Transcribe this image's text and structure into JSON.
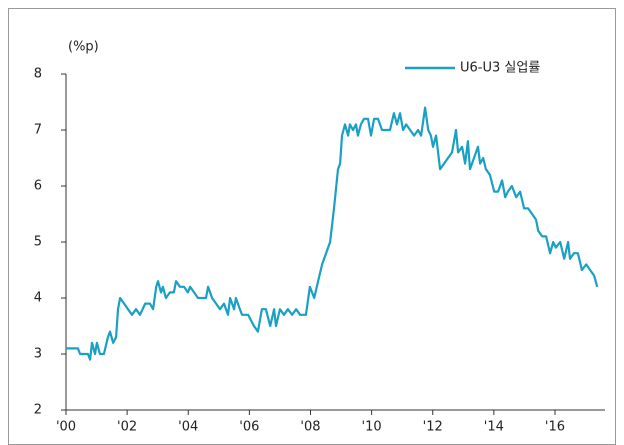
{
  "chart_data": {
    "type": "line",
    "y_label": "(%p)",
    "legend": "top-right",
    "xlim": [
      2000,
      2017.8
    ],
    "ylim": [
      2,
      8
    ],
    "yticks": [
      2,
      3,
      4,
      5,
      6,
      7,
      8
    ],
    "xticks": [
      {
        "value": 2000,
        "label": "'00"
      },
      {
        "value": 2002,
        "label": "'02"
      },
      {
        "value": 2004,
        "label": "'04"
      },
      {
        "value": 2006,
        "label": "'06"
      },
      {
        "value": 2008,
        "label": "'08"
      },
      {
        "value": 2010,
        "label": "'10"
      },
      {
        "value": 2012,
        "label": "'12"
      },
      {
        "value": 2014,
        "label": "'14"
      },
      {
        "value": 2016,
        "label": "'16"
      }
    ],
    "x": [
      2000.0,
      2000.39,
      2000.46,
      2000.72,
      2000.79,
      2000.85,
      2000.95,
      2001.01,
      2001.11,
      2001.24,
      2001.37,
      2001.44,
      2001.54,
      2001.64,
      2001.7,
      2001.77,
      2001.9,
      2002.03,
      2002.16,
      2002.29,
      2002.42,
      2002.59,
      2002.75,
      2002.85,
      2002.95,
      2003.01,
      2003.11,
      2003.17,
      2003.27,
      2003.4,
      2003.53,
      2003.6,
      2003.73,
      2003.86,
      2003.99,
      2004.06,
      2004.19,
      2004.32,
      2004.45,
      2004.58,
      2004.65,
      2004.78,
      2004.91,
      2005.04,
      2005.17,
      2005.3,
      2005.37,
      2005.5,
      2005.56,
      2005.69,
      2005.76,
      2005.96,
      2006.15,
      2006.28,
      2006.41,
      2006.54,
      2006.68,
      2006.81,
      2006.87,
      2007.0,
      2007.13,
      2007.26,
      2007.4,
      2007.53,
      2007.66,
      2007.85,
      2007.98,
      2008.12,
      2008.25,
      2008.38,
      2008.51,
      2008.64,
      2008.77,
      2008.9,
      2008.97,
      2009.03,
      2009.13,
      2009.23,
      2009.29,
      2009.39,
      2009.49,
      2009.55,
      2009.65,
      2009.75,
      2009.88,
      2009.98,
      2010.08,
      2010.21,
      2010.34,
      2010.47,
      2010.6,
      2010.73,
      2010.83,
      2010.93,
      2011.03,
      2011.13,
      2011.26,
      2011.39,
      2011.52,
      2011.62,
      2011.75,
      2011.85,
      2011.94,
      2012.01,
      2012.11,
      2012.24,
      2012.37,
      2012.5,
      2012.63,
      2012.76,
      2012.83,
      2012.96,
      2013.06,
      2013.15,
      2013.22,
      2013.35,
      2013.48,
      2013.55,
      2013.65,
      2013.74,
      2013.87,
      2014.01,
      2014.14,
      2014.27,
      2014.37,
      2014.46,
      2014.59,
      2014.73,
      2014.86,
      2014.99,
      2015.12,
      2015.25,
      2015.38,
      2015.45,
      2015.58,
      2015.71,
      2015.84,
      2015.94,
      2016.03,
      2016.17,
      2016.3,
      2016.43,
      2016.49,
      2016.62,
      2016.75,
      2016.88,
      2017.02,
      2017.15,
      2017.28,
      2017.38
    ],
    "series": [
      {
        "name": "U6-U3 실업률",
        "color": "#1aa0c4",
        "values": [
          3.1,
          3.1,
          3.0,
          3.0,
          2.9,
          3.2,
          3.0,
          3.2,
          3.0,
          3.0,
          3.3,
          3.4,
          3.2,
          3.3,
          3.8,
          4.0,
          3.9,
          3.8,
          3.7,
          3.8,
          3.7,
          3.9,
          3.9,
          3.8,
          4.2,
          4.3,
          4.1,
          4.2,
          4.0,
          4.1,
          4.1,
          4.3,
          4.2,
          4.2,
          4.1,
          4.2,
          4.1,
          4.0,
          4.0,
          4.0,
          4.2,
          4.0,
          3.9,
          3.8,
          3.9,
          3.7,
          4.0,
          3.8,
          4.0,
          3.8,
          3.7,
          3.7,
          3.5,
          3.4,
          3.8,
          3.8,
          3.5,
          3.8,
          3.5,
          3.8,
          3.7,
          3.8,
          3.7,
          3.8,
          3.7,
          3.7,
          4.2,
          4.0,
          4.3,
          4.6,
          4.8,
          5.0,
          5.6,
          6.3,
          6.4,
          6.9,
          7.1,
          6.9,
          7.1,
          7.0,
          7.1,
          6.9,
          7.1,
          7.2,
          7.2,
          6.9,
          7.2,
          7.2,
          7.0,
          7.0,
          7.0,
          7.3,
          7.1,
          7.3,
          7.0,
          7.1,
          7.0,
          6.9,
          7.0,
          6.9,
          7.4,
          7.0,
          6.9,
          6.7,
          6.9,
          6.3,
          6.4,
          6.5,
          6.6,
          7.0,
          6.6,
          6.7,
          6.4,
          6.8,
          6.3,
          6.5,
          6.7,
          6.4,
          6.5,
          6.3,
          6.2,
          5.9,
          5.9,
          6.1,
          5.8,
          5.9,
          6.0,
          5.8,
          5.9,
          5.6,
          5.6,
          5.5,
          5.4,
          5.2,
          5.1,
          5.1,
          4.8,
          5.0,
          4.9,
          5.0,
          4.7,
          5.0,
          4.7,
          4.8,
          4.8,
          4.5,
          4.6,
          4.5,
          4.4,
          4.2
        ]
      }
    ]
  }
}
